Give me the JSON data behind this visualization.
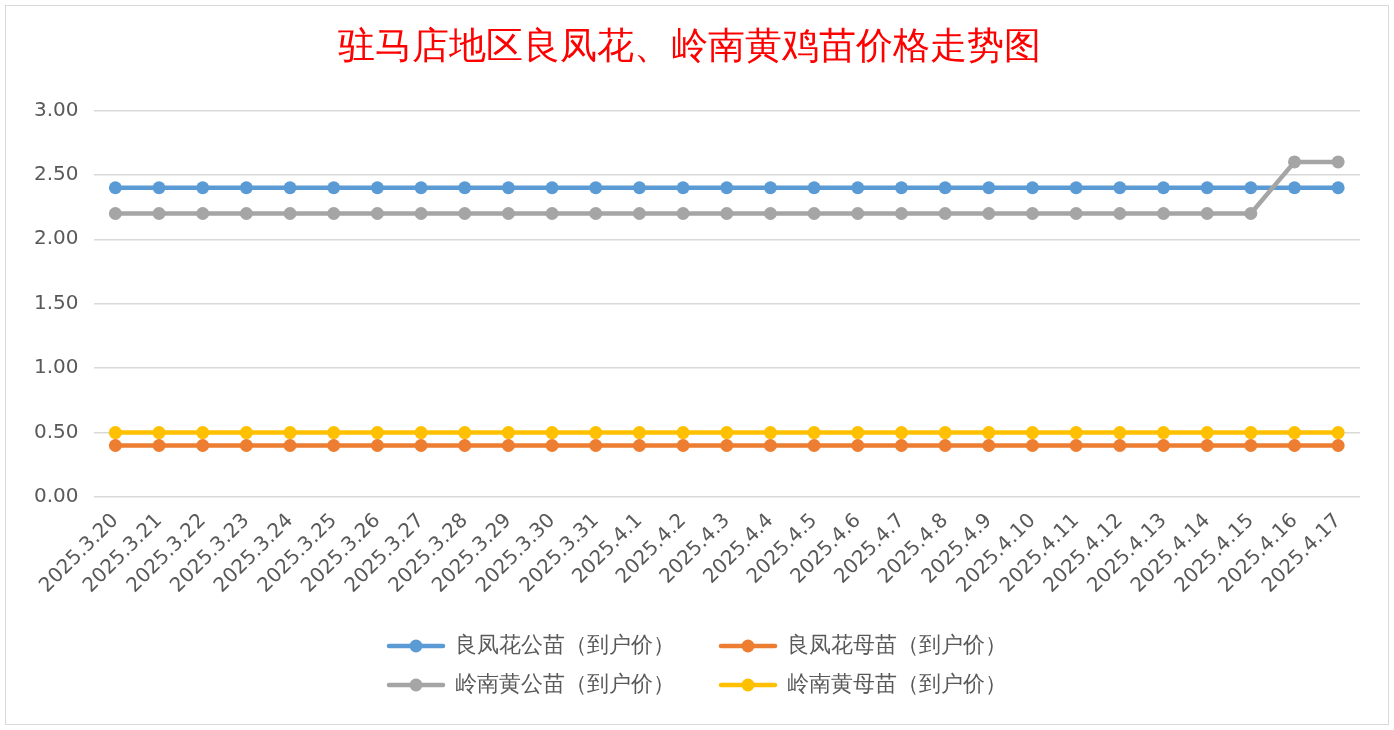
{
  "chart_data": {
    "type": "line",
    "title": "驻马店地区良凤花、岭南黄鸡苗价格走势图",
    "categories": [
      "2025.3.20",
      "2025.3.21",
      "2025.3.22",
      "2025.3.23",
      "2025.3.24",
      "2025.3.25",
      "2025.3.26",
      "2025.3.27",
      "2025.3.28",
      "2025.3.29",
      "2025.3.30",
      "2025.3.31",
      "2025.4.1",
      "2025.4.2",
      "2025.4.3",
      "2025.4.4",
      "2025.4.5",
      "2025.4.6",
      "2025.4.7",
      "2025.4.8",
      "2025.4.9",
      "2025.4.10",
      "2025.4.11",
      "2025.4.12",
      "2025.4.13",
      "2025.4.14",
      "2025.4.15",
      "2025.4.16",
      "2025.4.17"
    ],
    "series": [
      {
        "name": "良凤花公苗（到户价）",
        "color": "#5b9bd5",
        "values": [
          2.4,
          2.4,
          2.4,
          2.4,
          2.4,
          2.4,
          2.4,
          2.4,
          2.4,
          2.4,
          2.4,
          2.4,
          2.4,
          2.4,
          2.4,
          2.4,
          2.4,
          2.4,
          2.4,
          2.4,
          2.4,
          2.4,
          2.4,
          2.4,
          2.4,
          2.4,
          2.4,
          2.4,
          2.4
        ]
      },
      {
        "name": "良凤花母苗（到户价）",
        "color": "#ed7d31",
        "values": [
          0.4,
          0.4,
          0.4,
          0.4,
          0.4,
          0.4,
          0.4,
          0.4,
          0.4,
          0.4,
          0.4,
          0.4,
          0.4,
          0.4,
          0.4,
          0.4,
          0.4,
          0.4,
          0.4,
          0.4,
          0.4,
          0.4,
          0.4,
          0.4,
          0.4,
          0.4,
          0.4,
          0.4,
          0.4
        ]
      },
      {
        "name": "岭南黄公苗（到户价）",
        "color": "#a5a5a5",
        "values": [
          2.2,
          2.2,
          2.2,
          2.2,
          2.2,
          2.2,
          2.2,
          2.2,
          2.2,
          2.2,
          2.2,
          2.2,
          2.2,
          2.2,
          2.2,
          2.2,
          2.2,
          2.2,
          2.2,
          2.2,
          2.2,
          2.2,
          2.2,
          2.2,
          2.2,
          2.2,
          2.2,
          2.6,
          2.6
        ]
      },
      {
        "name": "岭南黄母苗（到户价）",
        "color": "#ffc000",
        "values": [
          0.5,
          0.5,
          0.5,
          0.5,
          0.5,
          0.5,
          0.5,
          0.5,
          0.5,
          0.5,
          0.5,
          0.5,
          0.5,
          0.5,
          0.5,
          0.5,
          0.5,
          0.5,
          0.5,
          0.5,
          0.5,
          0.5,
          0.5,
          0.5,
          0.5,
          0.5,
          0.5,
          0.5,
          0.5
        ]
      }
    ],
    "ylim": [
      0,
      3
    ],
    "yticks": [
      {
        "value": 0,
        "label": "0.00"
      },
      {
        "value": 0.5,
        "label": "0.50"
      },
      {
        "value": 1,
        "label": "1.00"
      },
      {
        "value": 1.5,
        "label": "1.50"
      },
      {
        "value": 2,
        "label": "2.00"
      },
      {
        "value": 2.5,
        "label": "2.50"
      },
      {
        "value": 3,
        "label": "3.00"
      }
    ],
    "grid": "y",
    "legend": "bottom",
    "marker": "circle",
    "line_style": "solid"
  }
}
